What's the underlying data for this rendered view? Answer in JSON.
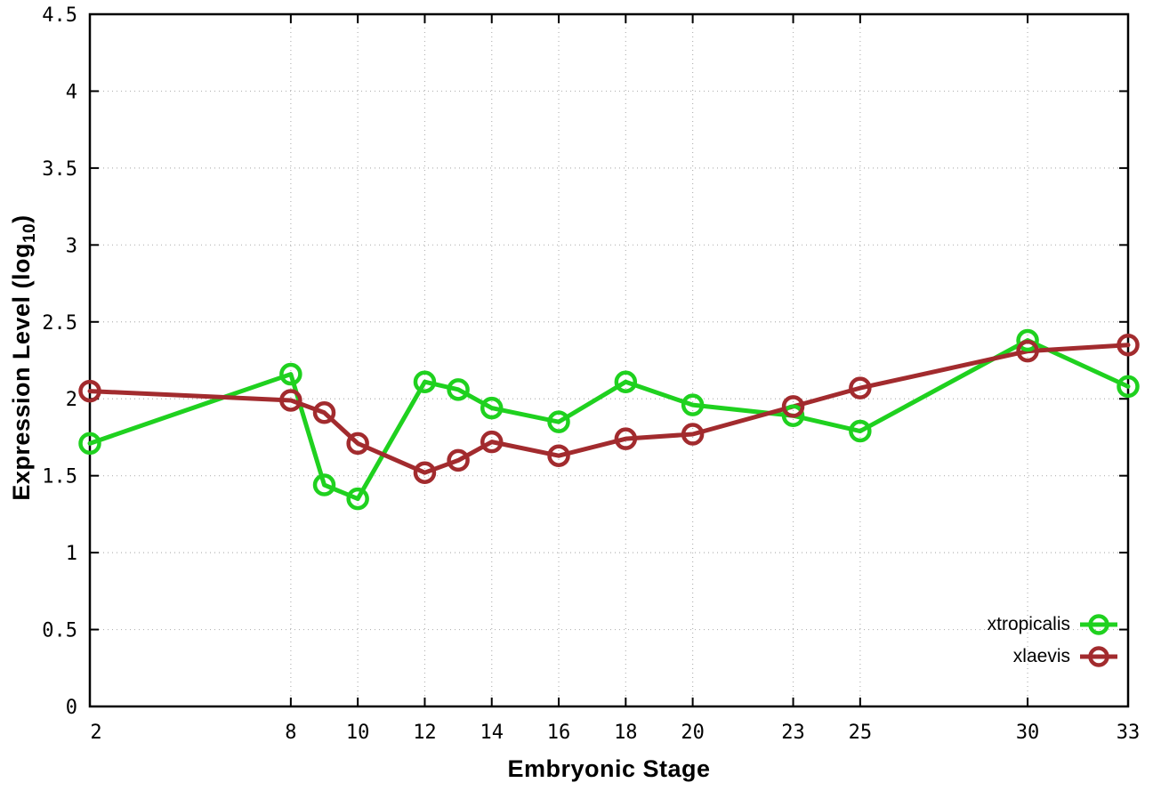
{
  "chart_data": {
    "type": "line",
    "title": "",
    "xlabel": "Embryonic Stage",
    "ylabel": "Expression Level (log10)",
    "ylabel_parts": {
      "main": "Expression Level (log",
      "sub": "10",
      "end": ")"
    },
    "x": [
      2,
      8,
      9,
      10,
      12,
      13,
      14,
      16,
      18,
      20,
      23,
      25,
      30,
      33
    ],
    "series": [
      {
        "name": "xtropicalis",
        "color": "#1fd11f",
        "marker": "open-circle",
        "values": [
          1.71,
          2.16,
          1.44,
          1.35,
          2.11,
          2.06,
          1.94,
          1.85,
          2.11,
          1.96,
          1.89,
          1.79,
          2.38,
          2.08
        ]
      },
      {
        "name": "xlaevis",
        "color": "#a22b2e",
        "marker": "open-circle",
        "values": [
          2.05,
          1.99,
          1.91,
          1.71,
          1.52,
          1.6,
          1.72,
          1.63,
          1.74,
          1.77,
          1.95,
          2.07,
          2.31,
          2.35
        ]
      }
    ],
    "xlim": [
      2,
      33
    ],
    "ylim": [
      0,
      4.5
    ],
    "xticks": [
      2,
      8,
      10,
      12,
      14,
      16,
      18,
      20,
      23,
      25,
      30,
      33
    ],
    "xtick_labels": [
      "2",
      "8",
      "10",
      "12",
      "14",
      "16",
      "18",
      "20",
      "23",
      "25",
      "30",
      "33"
    ],
    "yticks": [
      0,
      0.5,
      1,
      1.5,
      2,
      2.5,
      3,
      3.5,
      4,
      4.5
    ],
    "ytick_labels": [
      "0",
      "0.5",
      "1",
      "1.5",
      "2",
      "2.5",
      "3",
      "3.5",
      "4",
      "4.5"
    ],
    "grid": true,
    "grid_color": "#b4b4b4",
    "border_color": "#000000",
    "legend_position": "bottom-right"
  }
}
